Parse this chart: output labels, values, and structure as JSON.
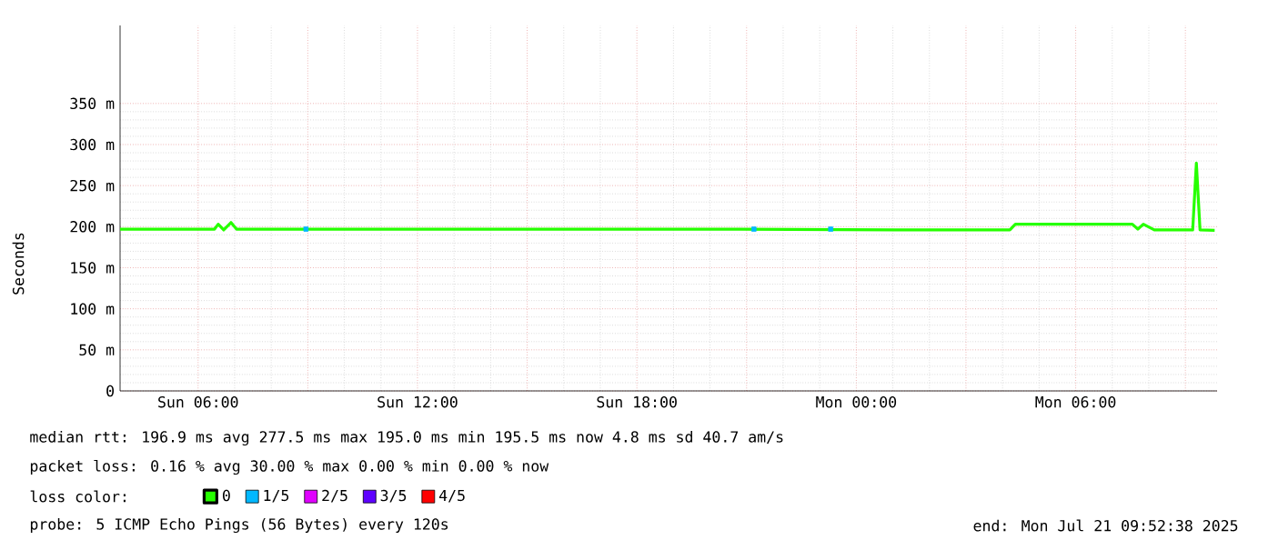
{
  "chart_data": {
    "type": "line",
    "ylabel": "Seconds",
    "xlim": [
      "2025-07-20T03:52",
      "2025-07-21T09:52"
    ],
    "xticks": [
      {
        "value": "2025-07-20T06:00",
        "label": "Sun 06:00"
      },
      {
        "value": "2025-07-20T09:00",
        "label": null
      },
      {
        "value": "2025-07-20T12:00",
        "label": "Sun 12:00"
      },
      {
        "value": "2025-07-20T15:00",
        "label": null
      },
      {
        "value": "2025-07-20T18:00",
        "label": "Sun 18:00"
      },
      {
        "value": "2025-07-20T21:00",
        "label": null
      },
      {
        "value": "2025-07-21T00:00",
        "label": "Mon 00:00"
      },
      {
        "value": "2025-07-21T03:00",
        "label": null
      },
      {
        "value": "2025-07-21T06:00",
        "label": "Mon 06:00"
      },
      {
        "value": "2025-07-21T09:00",
        "label": null
      }
    ],
    "ylim": [
      0,
      445
    ],
    "yticks": [
      0,
      {
        "value": 50,
        "label": "50 m"
      },
      {
        "value": 100,
        "label": "100 m"
      },
      {
        "value": 150,
        "label": "150 m"
      },
      {
        "value": 200,
        "label": "200 m"
      },
      {
        "value": 250,
        "label": "250 m"
      },
      {
        "value": 300,
        "label": "300 m"
      },
      {
        "value": 350,
        "label": "350 m"
      }
    ],
    "grid": true,
    "legend": "bottom",
    "series": [
      {
        "name": "0",
        "color": "#26ff00",
        "x": [
          "2025-07-20T03:52",
          "2025-07-20T06:27",
          "2025-07-20T06:33",
          "2025-07-20T06:42",
          "2025-07-20T06:54",
          "2025-07-20T07:03",
          "2025-07-20T20:48",
          "2025-07-21T01:03",
          "2025-07-21T04:12",
          "2025-07-21T04:21",
          "2025-07-21T07:33",
          "2025-07-21T07:42",
          "2025-07-21T07:51",
          "2025-07-21T08:09",
          "2025-07-21T09:12",
          "2025-07-21T09:18",
          "2025-07-21T09:24",
          "2025-07-21T09:48"
        ],
        "values": [
          197,
          197,
          203,
          196,
          205,
          197,
          197,
          196,
          196,
          203,
          203,
          197,
          203,
          196,
          196,
          277.5,
          196,
          195.5
        ]
      },
      {
        "name": "1/5",
        "color": "#00b8ff",
        "type": "scatter",
        "marker": "square",
        "x": [
          "2025-07-20T08:57",
          "2025-07-20T21:12",
          "2025-07-20T23:18"
        ],
        "values": [
          197,
          197,
          197
        ]
      },
      {
        "name": "2/5",
        "color": "#e000ff",
        "type": "scatter",
        "marker": "square"
      },
      {
        "name": "3/5",
        "color": "#5e00ff",
        "type": "scatter",
        "marker": "square"
      },
      {
        "name": "4/5",
        "color": "#ff0000",
        "type": "scatter",
        "marker": "square"
      }
    ],
    "annotations": [
      "median rtt:  196.9 ms avg  277.5 ms max  195.0 ms min  195.5 ms now  4.8 ms sd  40.7   am/s",
      "packet loss: 0.16 % avg  30.00 % max  0.00 % min  0.00 % now",
      "loss color:",
      "probe:       5 ICMP Echo Pings (56 Bytes) every 120s",
      "end: Mon Jul 21 09:52:38 2025"
    ]
  }
}
